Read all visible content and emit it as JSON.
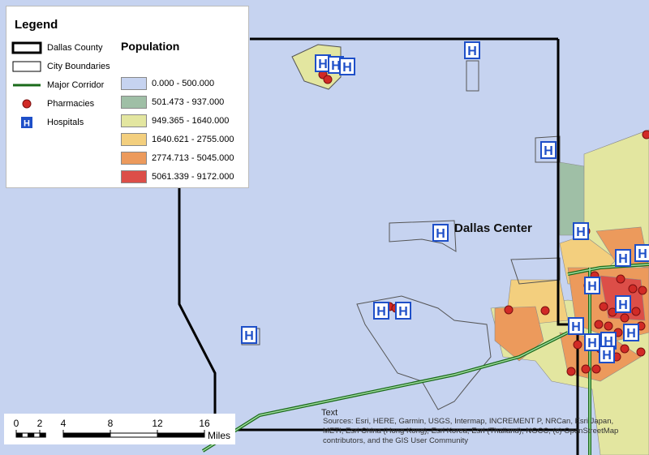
{
  "legend": {
    "title": "Legend",
    "items": [
      "Dallas County",
      "City Boundaries",
      "Major Corridor",
      "Pharmacies",
      "Hospitals"
    ],
    "population": {
      "title": "Population",
      "classes": [
        {
          "label": "0.000 - 500.000",
          "color": "#c6d3f0"
        },
        {
          "label": "501.473 - 937.000",
          "color": "#9fbfa6"
        },
        {
          "label": "949.365 - 1640.000",
          "color": "#e3e6a0"
        },
        {
          "label": "1640.621 - 2755.000",
          "color": "#f3cf7e"
        },
        {
          "label": "2774.713 - 5045.000",
          "color": "#ec9a5c"
        },
        {
          "label": "5061.339 - 9172.000",
          "color": "#dc4e48"
        }
      ]
    }
  },
  "map": {
    "place_label": "Dallas Center",
    "text_label": "Text",
    "attribution": "Sources: Esri, HERE, Garmin, USGS, Intermap, INCREMENT P, NRCan, Esri Japan, METI, Esri China (Hong Kong), Esri Korea, Esri (Thailand), NGCC, (c) OpenStreetMap contributors, and the GIS User Community"
  },
  "scale_bar": {
    "labels": [
      0,
      2,
      4,
      8,
      12,
      16
    ],
    "unit": "Miles"
  }
}
